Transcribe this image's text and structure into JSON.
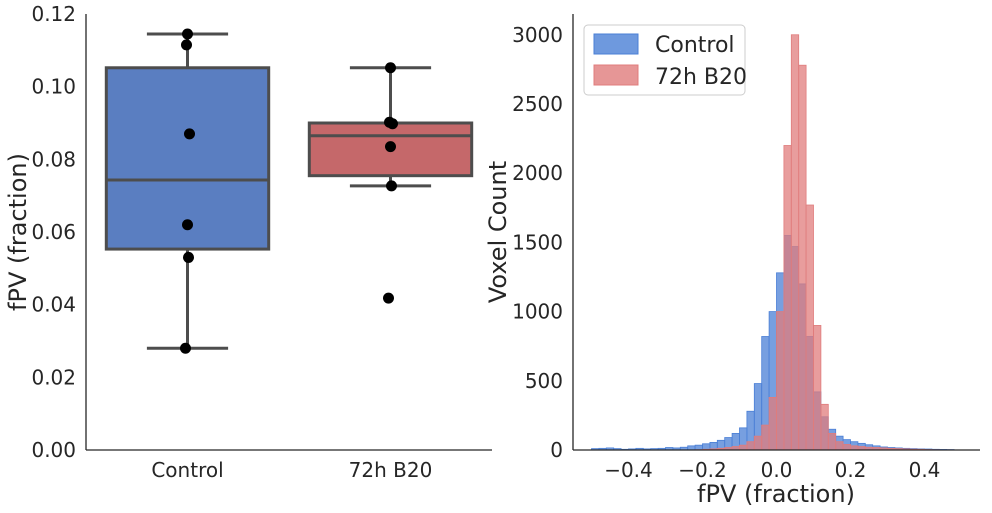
{
  "chart_data": [
    {
      "type": "box",
      "ylabel": "fPV (fraction)",
      "xlabel": "",
      "ylim": [
        0,
        0.12
      ],
      "yticks": [
        "0.00",
        "0.02",
        "0.04",
        "0.06",
        "0.08",
        "0.10",
        "0.12"
      ],
      "categories": [
        "Control",
        "72h B20"
      ],
      "boxes": [
        {
          "category": "Control",
          "color": "#5a7ec1",
          "q1": 0.0553,
          "median": 0.0743,
          "q3": 0.1052,
          "whisker_low": 0.028,
          "whisker_high": 0.1145,
          "points": [
            0.1145,
            0.1115,
            0.087,
            0.062,
            0.053,
            0.028
          ]
        },
        {
          "category": "72h B20",
          "color": "#c5686a",
          "q1": 0.0755,
          "median": 0.0865,
          "q3": 0.09,
          "whisker_low": 0.0727,
          "whisker_high": 0.1052,
          "points": [
            0.1052,
            0.0902,
            0.0898,
            0.0835,
            0.0727,
            0.0418
          ]
        }
      ]
    },
    {
      "type": "histogram",
      "xlabel": "fPV (fraction)",
      "ylabel": "Voxel Count",
      "xlim": [
        -0.55,
        0.55
      ],
      "ylim": [
        0,
        3150
      ],
      "xticks": [
        "-0.4",
        "-0.2",
        "0.0",
        "0.2",
        "0.4"
      ],
      "yticks": [
        "0",
        "500",
        "1000",
        "1500",
        "2000",
        "2500",
        "3000"
      ],
      "legend_position": "top-left",
      "bin_start": -0.5,
      "bin_width": 0.02,
      "series": [
        {
          "name": "Control",
          "color": "#4a7fd6",
          "counts": [
            10,
            12,
            15,
            10,
            5,
            8,
            12,
            8,
            10,
            12,
            18,
            15,
            20,
            30,
            35,
            45,
            55,
            70,
            90,
            120,
            160,
            280,
            480,
            820,
            1000,
            1280,
            1550,
            1470,
            1200,
            820,
            420,
            240,
            150,
            100,
            75,
            60,
            48,
            38,
            30,
            22,
            18,
            15,
            12,
            10,
            8,
            7,
            5,
            4,
            3,
            0
          ]
        },
        {
          "name": "72h B20",
          "color": "#e07c7c",
          "counts": [
            0,
            0,
            0,
            0,
            0,
            0,
            0,
            0,
            0,
            0,
            0,
            0,
            0,
            0,
            2,
            5,
            8,
            12,
            18,
            25,
            35,
            60,
            100,
            180,
            380,
            1000,
            2200,
            3000,
            2780,
            1770,
            900,
            330,
            120,
            60,
            40,
            30,
            25,
            20,
            18,
            15,
            12,
            10,
            8,
            6,
            5,
            3,
            2,
            1,
            1,
            0
          ]
        }
      ]
    }
  ]
}
